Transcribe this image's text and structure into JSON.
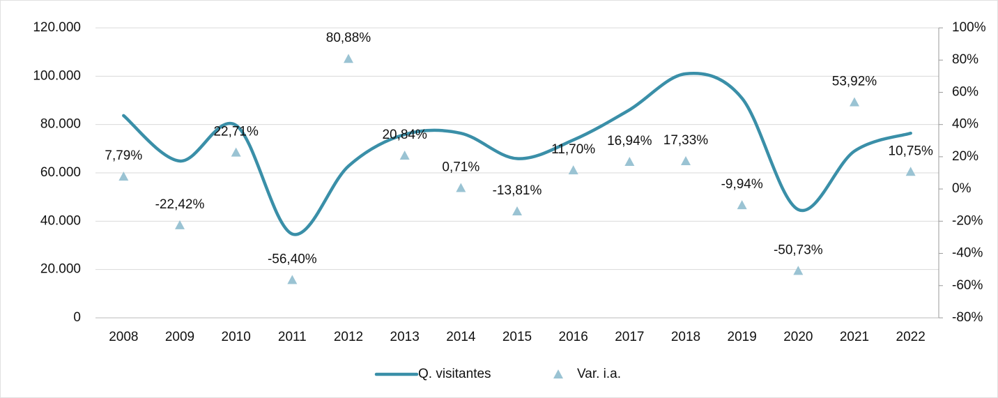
{
  "chart_data": {
    "type": "line",
    "categories": [
      "2008",
      "2009",
      "2010",
      "2011",
      "2012",
      "2013",
      "2014",
      "2015",
      "2016",
      "2017",
      "2018",
      "2019",
      "2020",
      "2021",
      "2022"
    ],
    "series": [
      {
        "name": "Q. visitantes",
        "color": "#3a8fa8",
        "values": [
          83700,
          64900,
          79700,
          34700,
          62800,
          75900,
          76400,
          65900,
          73600,
          86100,
          101000,
          90900,
          44800,
          69000,
          76400
        ]
      },
      {
        "name": "Var. i.a.",
        "color": "#9ac3d3",
        "axis": "y2",
        "marker": "triangle",
        "values": [
          7.79,
          -22.42,
          22.71,
          -56.4,
          80.88,
          20.84,
          0.71,
          -13.81,
          11.7,
          16.94,
          17.33,
          -9.94,
          -50.73,
          53.92,
          10.75
        ],
        "value_labels": [
          "7,79%",
          "-22,42%",
          "22,71%",
          "-56,40%",
          "80,88%",
          "20,84%",
          "0,71%",
          "-13,81%",
          "11,70%",
          "16,94%",
          "17,33%",
          "-9,94%",
          "-50,73%",
          "53,92%",
          "10,75%"
        ]
      }
    ],
    "ylim": [
      0,
      120000
    ],
    "yticks": [
      0,
      {
        "value": 20000,
        "label": "20.000"
      },
      {
        "value": 40000,
        "label": "40.000"
      },
      {
        "value": 60000,
        "label": "60.000"
      },
      {
        "value": 80000,
        "label": "80.000"
      },
      {
        "value": 100000,
        "label": "100.000"
      },
      {
        "value": 120000,
        "label": "120.000"
      }
    ],
    "y2lim": [
      -80,
      100
    ],
    "y2ticks": [
      {
        "value": -80,
        "label": "-80%"
      },
      {
        "value": -60,
        "label": "-60%"
      },
      {
        "value": -40,
        "label": "-40%"
      },
      {
        "value": -20,
        "label": "-20%"
      },
      {
        "value": 0,
        "label": "0%"
      },
      {
        "value": 20,
        "label": "20%"
      },
      {
        "value": 40,
        "label": "40%"
      },
      {
        "value": 60,
        "label": "60%"
      },
      {
        "value": 80,
        "label": "80%"
      },
      {
        "value": 100,
        "label": "100%"
      }
    ],
    "grid": true,
    "legend": "bottom"
  }
}
